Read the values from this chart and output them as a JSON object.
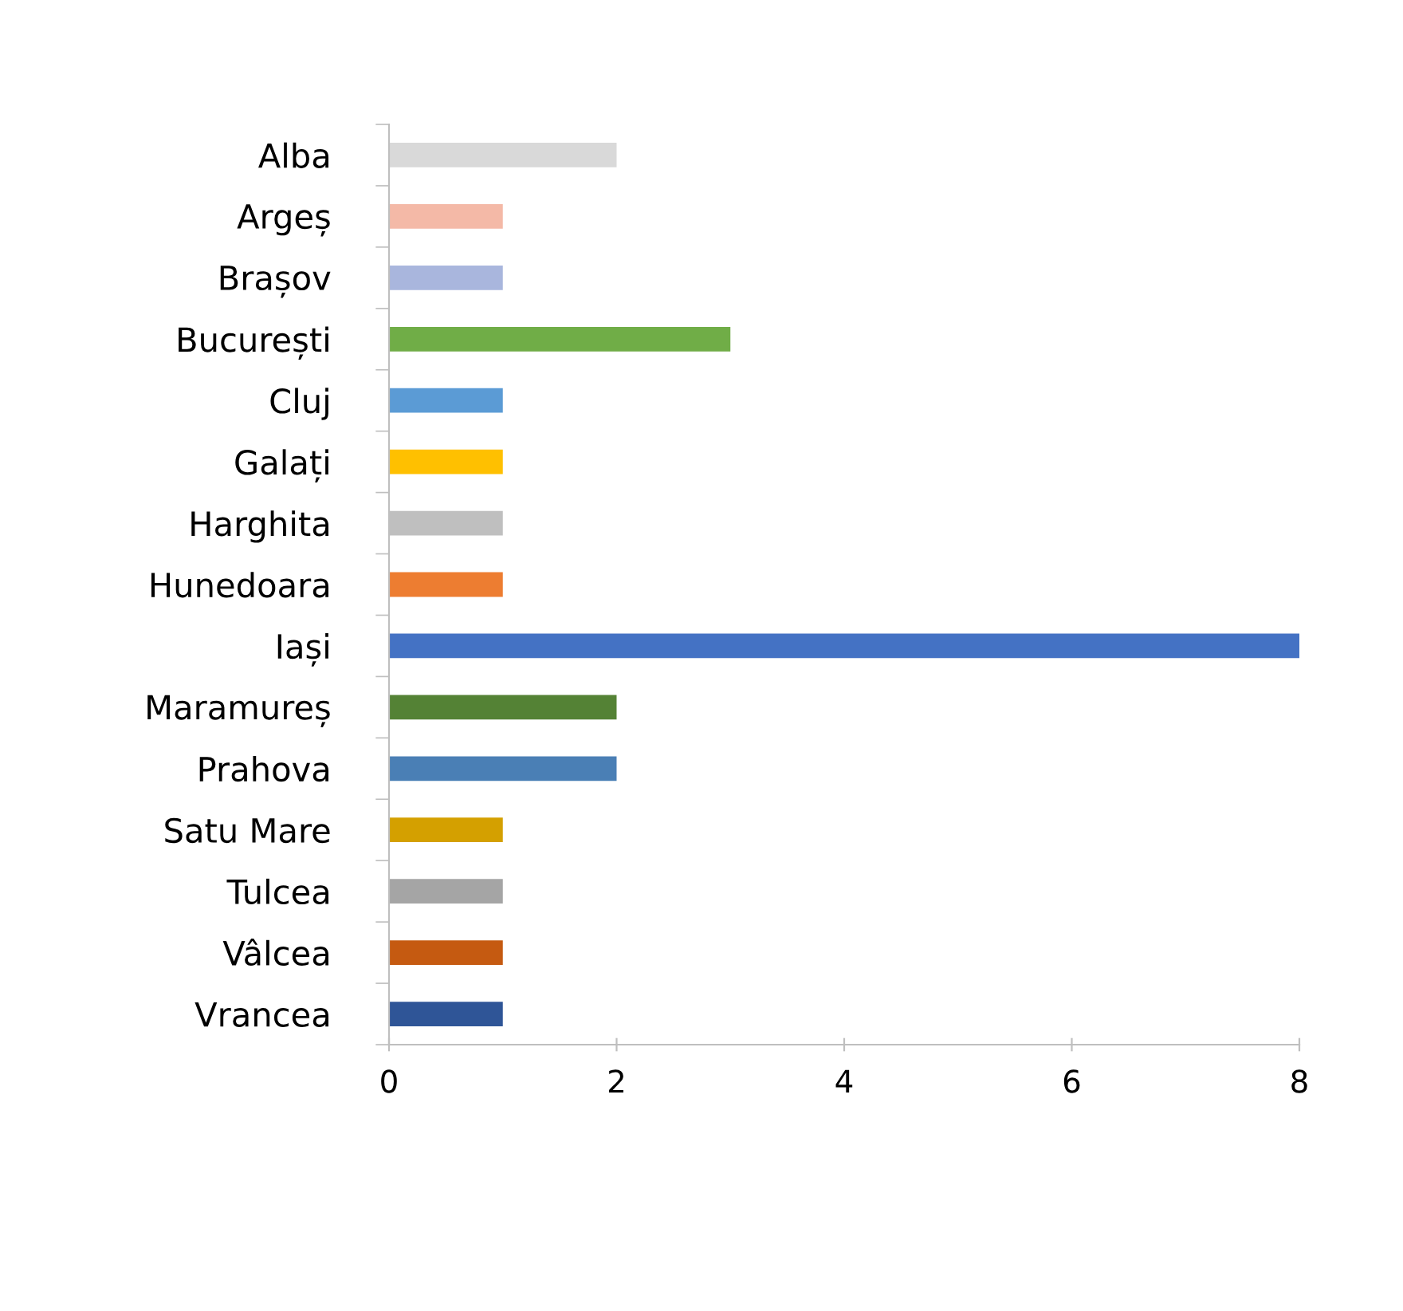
{
  "chart_data": {
    "type": "bar",
    "orientation": "horizontal",
    "categories": [
      "Alba",
      "Argeș",
      "Brașov",
      "București",
      "Cluj",
      "Galați",
      "Harghita",
      "Hunedoara",
      "Iași",
      "Maramureș",
      "Prahova",
      "Satu Mare",
      "Tulcea",
      "Vâlcea",
      "Vrancea"
    ],
    "values": [
      2,
      1,
      1,
      3,
      1,
      1,
      1,
      1,
      8,
      2,
      2,
      1,
      1,
      1,
      1
    ],
    "colors": [
      "#d9d9d9",
      "#f4b9a7",
      "#a9b6dd",
      "#70ad47",
      "#5b9bd5",
      "#ffc000",
      "#bfbfbf",
      "#ed7d31",
      "#4472c4",
      "#548235",
      "#4a7fb5",
      "#d4a000",
      "#a5a5a5",
      "#c55a11",
      "#2f5597"
    ],
    "xlim": [
      0,
      8
    ],
    "xticks": [
      0,
      2,
      4,
      6,
      8
    ],
    "grid": false,
    "legend": false
  }
}
